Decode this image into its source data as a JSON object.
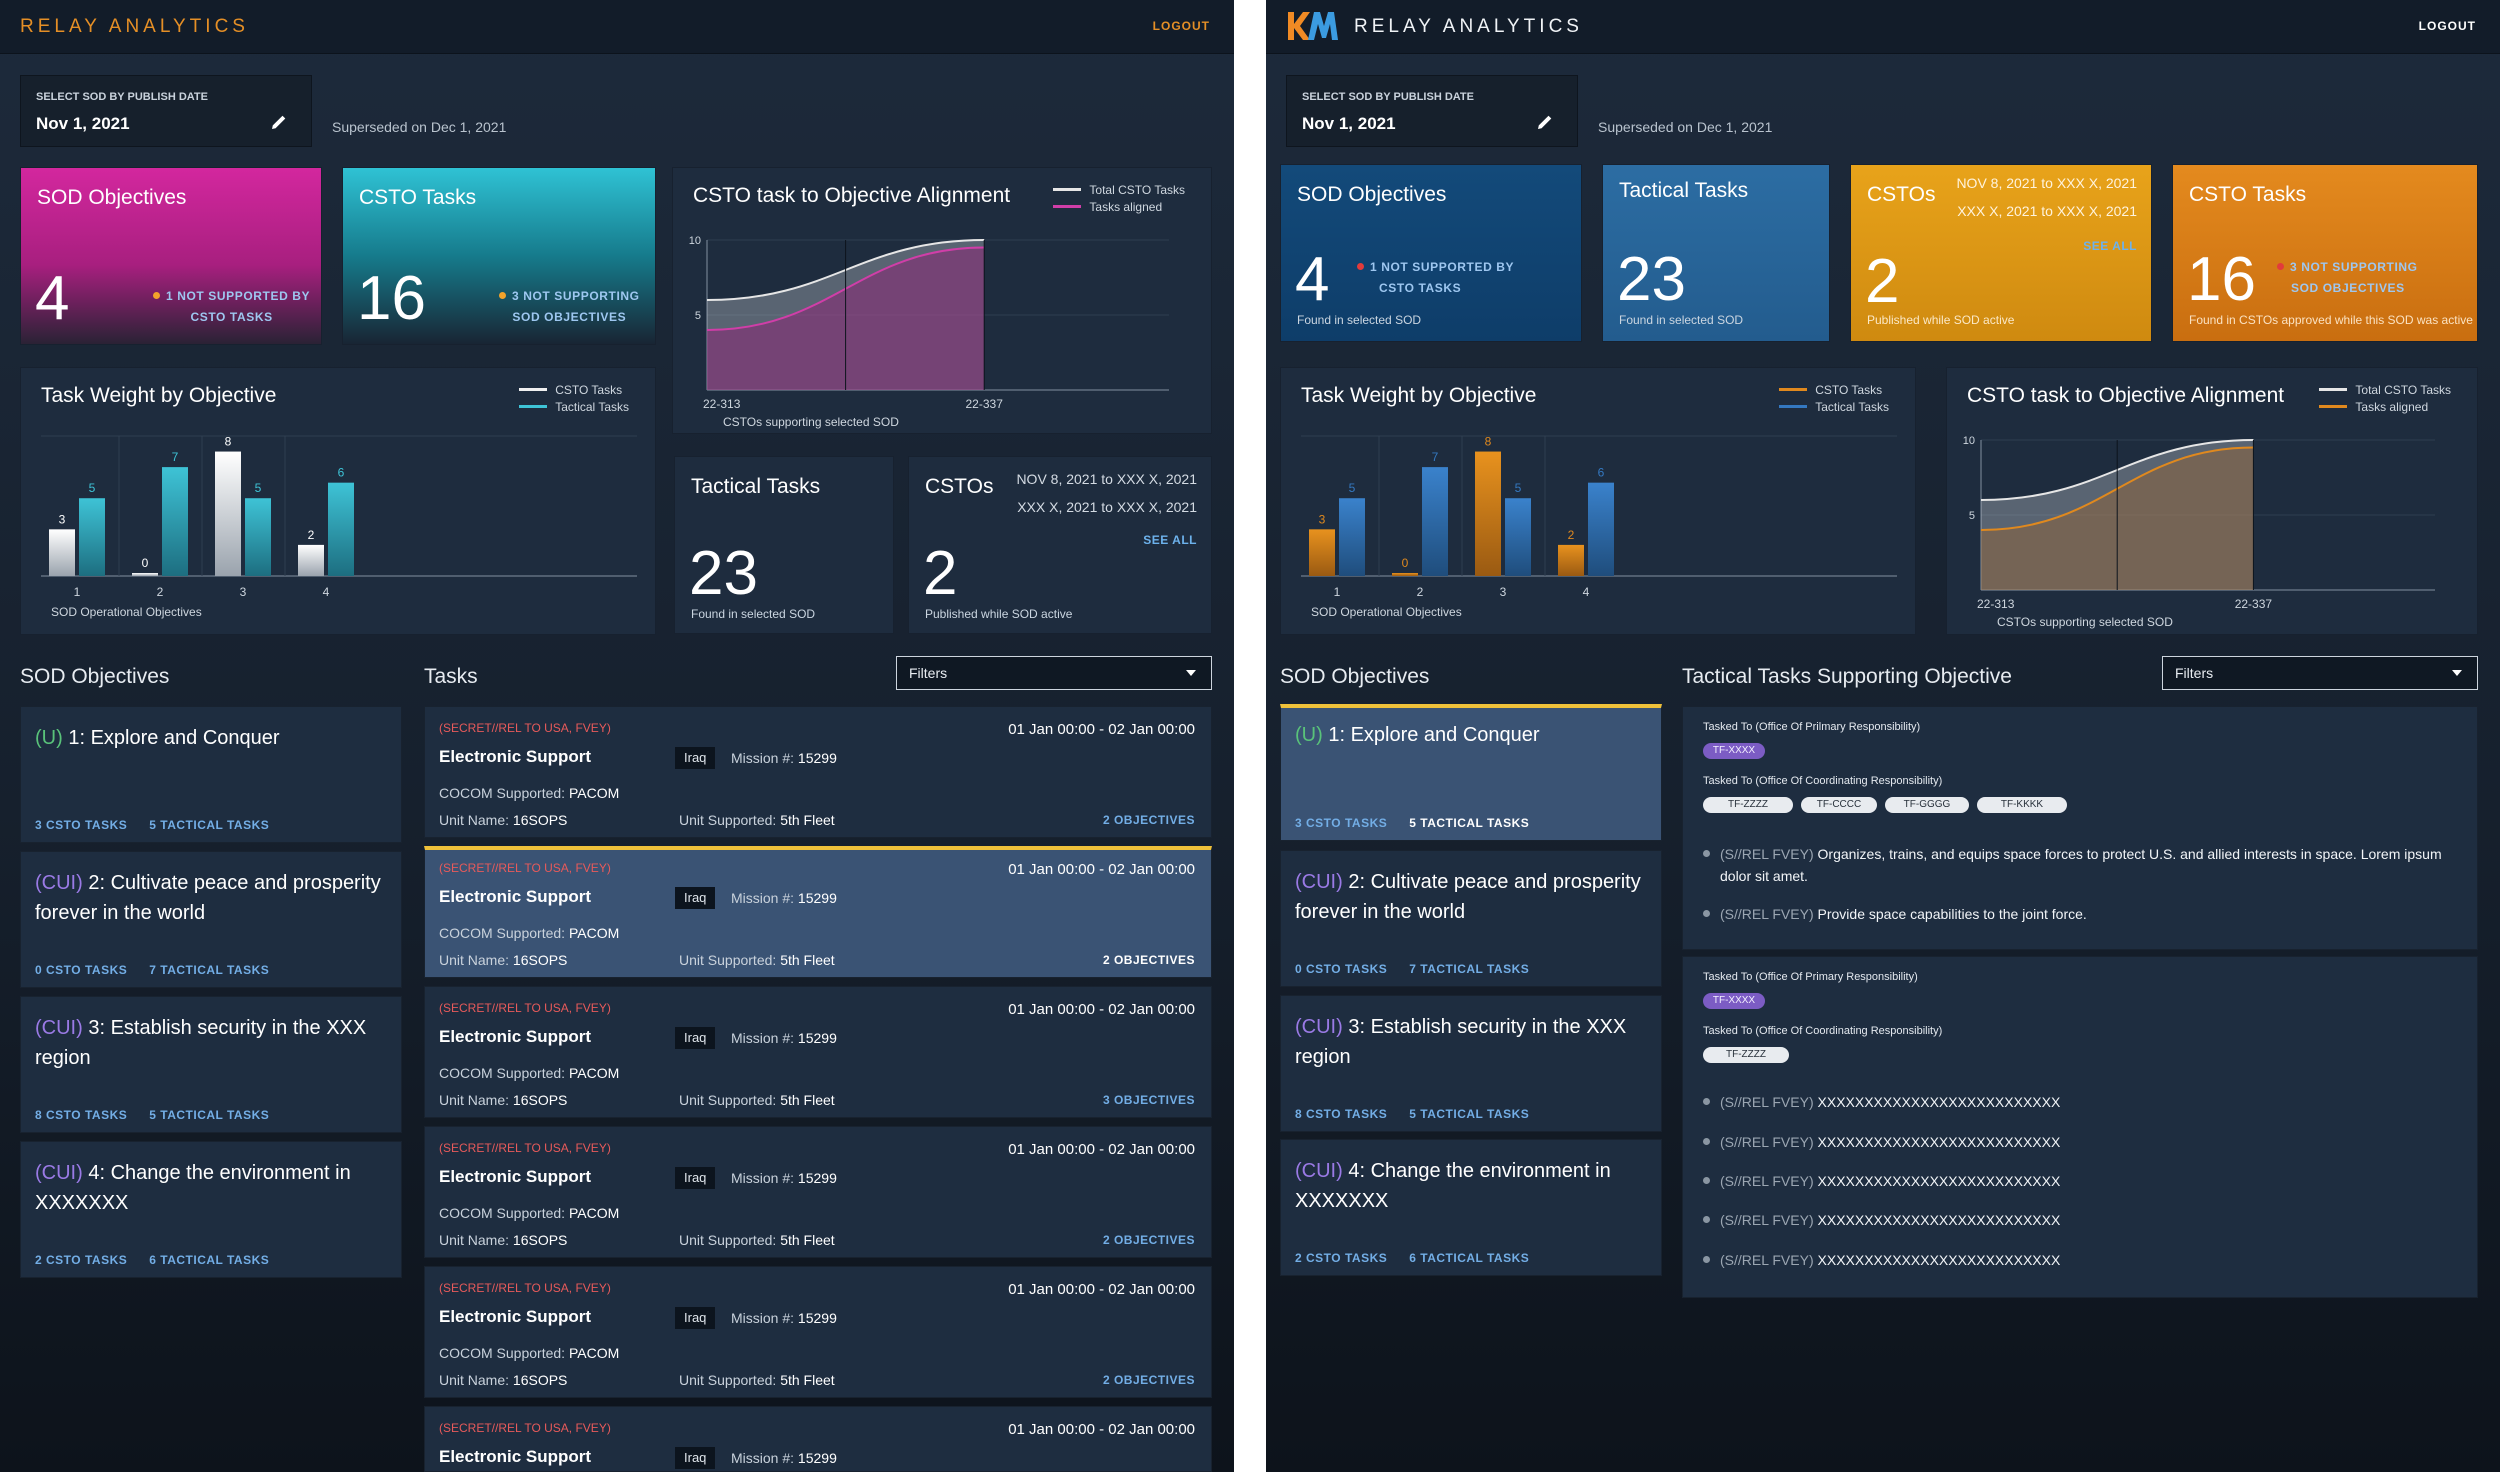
{
  "left": {
    "brand": "RELAY ANALYTICS",
    "logout": "LOGOUT",
    "select_label": "SELECT SOD BY PUBLISH DATE",
    "select_value": "Nov 1, 2021",
    "superseded": "Superseded on Dec 1, 2021",
    "kpi_sod": {
      "title": "SOD Objectives",
      "value": "4",
      "note1": "1 NOT SUPPORTED BY",
      "note2": "CSTO TASKS"
    },
    "kpi_csto": {
      "title": "CSTO Tasks",
      "value": "16",
      "note1": "3 NOT SUPPORTING",
      "note2": "SOD OBJECTIVES"
    },
    "kpi_tactical": {
      "title": "Tactical Tasks",
      "value": "23",
      "foot": "Found in selected SOD"
    },
    "kpi_cstos": {
      "title": "CSTOs",
      "value": "2",
      "date1": "NOV 8, 2021 to XXX X, 2021",
      "date2": "XXX X, 2021 to XXX X, 2021",
      "see_all": "SEE ALL",
      "foot": "Published while SOD active"
    },
    "task_weight": {
      "title": "Task Weight by Objective",
      "legend": [
        "CSTO Tasks",
        "Tactical Tasks"
      ],
      "xlabel": "SOD Operational Objectives",
      "colors": [
        "#f0f0f0",
        "#3ec3d6"
      ]
    },
    "alignment": {
      "title": "CSTO task to Objective Alignment",
      "legend": [
        "Total CSTO Tasks",
        "Tasks aligned"
      ],
      "xlabel": "CSTOs supporting selected SOD",
      "colors": [
        "#e6e6e6",
        "#d03ea8"
      ]
    },
    "objectives_title": "SOD Objectives",
    "tasks_title": "Tasks",
    "filters_label": "Filters",
    "objectives": [
      {
        "cls": "(U)",
        "text": "1: Explore and Conquer",
        "csto": "3 CSTO TASKS",
        "tactical": "5 TACTICAL TASKS"
      },
      {
        "cls": "(CUI)",
        "text": "2: Cultivate peace and prosperity forever in the world",
        "csto": "0 CSTO TASKS",
        "tactical": "7 TACTICAL TASKS"
      },
      {
        "cls": "(CUI)",
        "text": "3: Establish security in the XXX region",
        "csto": "8 CSTO TASKS",
        "tactical": "5 TACTICAL TASKS"
      },
      {
        "cls": "(CUI)",
        "text": "4: Change the environment in XXXXXXX",
        "csto": "2 CSTO TASKS",
        "tactical": "6 TACTICAL TASKS"
      }
    ],
    "tasks": [
      {
        "cls": "(SECRET//REL TO USA, FVEY)",
        "date": "01 Jan 00:00 - 02 Jan 00:00",
        "name": "Electronic Support",
        "loc": "Iraq",
        "mission_label": "Mission #:",
        "mission": "15299",
        "cocom_label": "COCOM Supported:",
        "cocom": "PACOM",
        "unit_label": "Unit Name:",
        "unit": "16SOPS",
        "usup_label": "Unit Supported:",
        "usup": "5th Fleet",
        "objs": "2 OBJECTIVES"
      },
      {
        "cls": "(SECRET//REL TO USA, FVEY)",
        "date": "01 Jan 00:00 - 02 Jan 00:00",
        "name": "Electronic Support",
        "loc": "Iraq",
        "mission_label": "Mission #:",
        "mission": "15299",
        "cocom_label": "COCOM Supported:",
        "cocom": "PACOM",
        "unit_label": "Unit Name:",
        "unit": "16SOPS",
        "usup_label": "Unit Supported:",
        "usup": "5th Fleet",
        "objs": "2 OBJECTIVES"
      },
      {
        "cls": "(SECRET//REL TO USA, FVEY)",
        "date": "01 Jan 00:00 - 02 Jan 00:00",
        "name": "Electronic Support",
        "loc": "Iraq",
        "mission_label": "Mission #:",
        "mission": "15299",
        "cocom_label": "COCOM Supported:",
        "cocom": "PACOM",
        "unit_label": "Unit Name:",
        "unit": "16SOPS",
        "usup_label": "Unit Supported:",
        "usup": "5th Fleet",
        "objs": "3 OBJECTIVES"
      },
      {
        "cls": "(SECRET//REL TO USA, FVEY)",
        "date": "01 Jan 00:00 - 02 Jan 00:00",
        "name": "Electronic Support",
        "loc": "Iraq",
        "mission_label": "Mission #:",
        "mission": "15299",
        "cocom_label": "COCOM Supported:",
        "cocom": "PACOM",
        "unit_label": "Unit Name:",
        "unit": "16SOPS",
        "usup_label": "Unit Supported:",
        "usup": "5th Fleet",
        "objs": "2 OBJECTIVES"
      },
      {
        "cls": "(SECRET//REL TO USA, FVEY)",
        "date": "01 Jan 00:00 - 02 Jan 00:00",
        "name": "Electronic Support",
        "loc": "Iraq",
        "mission_label": "Mission #:",
        "mission": "15299",
        "cocom_label": "COCOM Supported:",
        "cocom": "PACOM",
        "unit_label": "Unit Name:",
        "unit": "16SOPS",
        "usup_label": "Unit Supported:",
        "usup": "5th Fleet",
        "objs": "2 OBJECTIVES"
      },
      {
        "cls": "(SECRET//REL TO USA, FVEY)",
        "date": "01 Jan 00:00 - 02 Jan 00:00",
        "name": "Electronic Support",
        "loc": "Iraq",
        "mission_label": "Mission #:",
        "mission": "15299"
      }
    ]
  },
  "right": {
    "brand": "RELAY ANALYTICS",
    "logout": "LOGOUT",
    "select_label": "SELECT SOD BY PUBLISH DATE",
    "select_value": "Nov 1, 2021",
    "superseded": "Superseded on Dec 1, 2021",
    "kpi_sod": {
      "title": "SOD Objectives",
      "value": "4",
      "note1": "1 NOT SUPPORTED BY",
      "note2": "CSTO TASKS",
      "foot": "Found in selected SOD"
    },
    "kpi_tactical": {
      "title": "Tactical Tasks",
      "value": "23",
      "foot": "Found in selected SOD"
    },
    "kpi_cstos": {
      "title": "CSTOs",
      "value": "2",
      "date1": "NOV 8, 2021 to XXX X, 2021",
      "date2": "XXX X, 2021 to XXX X, 2021",
      "see_all": "SEE ALL",
      "foot": "Published while SOD active"
    },
    "kpi_csto": {
      "title": "CSTO Tasks",
      "value": "16",
      "note1": "3 NOT SUPPORTING",
      "note2": "SOD OBJECTIVES",
      "foot": "Found in CSTOs approved while this SOD was active"
    },
    "task_weight": {
      "title": "Task Weight by Objective",
      "legend": [
        "CSTO Tasks",
        "Tactical Tasks"
      ],
      "xlabel": "SOD Operational Objectives",
      "colors": [
        "#e0891e",
        "#3478c0"
      ]
    },
    "alignment": {
      "title": "CSTO task to Objective Alignment",
      "legend": [
        "Total CSTO Tasks",
        "Tasks aligned"
      ],
      "xlabel": "CSTOs supporting selected SOD",
      "colors": [
        "#e6e6e6",
        "#e0891e"
      ]
    },
    "objectives_title": "SOD Objectives",
    "tactical_title": "Tactical Tasks Supporting Objective",
    "filters_label": "Filters",
    "objectives": [
      {
        "cls": "(U)",
        "text": "1: Explore and Conquer",
        "csto": "3 CSTO TASKS",
        "tactical": "5 TACTICAL TASKS"
      },
      {
        "cls": "(CUI)",
        "text": "2: Cultivate peace and prosperity forever in the world",
        "csto": "0 CSTO TASKS",
        "tactical": "7 TACTICAL TASKS"
      },
      {
        "cls": "(CUI)",
        "text": "3: Establish security in the XXX region",
        "csto": "8 CSTO TASKS",
        "tactical": "5 TACTICAL TASKS"
      },
      {
        "cls": "(CUI)",
        "text": "4: Change the environment in XXXXXXX",
        "csto": "2 CSTO TASKS",
        "tactical": "6 TACTICAL TASKS"
      }
    ],
    "tactical_tasks": [
      {
        "primary_label": "Tasked To (Office Of Prilmary Responsibility)",
        "primary": [
          "TF-XXXX"
        ],
        "coord_label": "Tasked To (Office Of Coordinating Responsibility)",
        "coord": [
          "TF-ZZZZ",
          "TF-CCCC",
          "TF-GGGG",
          "TF-KKKK"
        ],
        "bullets": [
          {
            "cls": "(S//REL FVEY)",
            "text": "Organizes, trains, and equips space forces to protect U.S. and allied interests in space. Lorem ipsum dolor sit amet."
          },
          {
            "cls": "(S//REL FVEY)",
            "text": "Provide space capabilities to the joint force."
          }
        ]
      },
      {
        "primary_label": "Tasked To (Office Of Primary Responsibility)",
        "primary": [
          "TF-XXXX"
        ],
        "coord_label": "Tasked To (Office Of Coordinating Responsibility)",
        "coord": [
          "TF-ZZZZ"
        ],
        "bullets": [
          {
            "cls": "(S//REL FVEY)",
            "text": "XXXXXXXXXXXXXXXXXXXXXXXXXX"
          },
          {
            "cls": "(S//REL FVEY)",
            "text": "XXXXXXXXXXXXXXXXXXXXXXXXXX"
          },
          {
            "cls": "(S//REL FVEY)",
            "text": "XXXXXXXXXXXXXXXXXXXXXXXXXX"
          },
          {
            "cls": "(S//REL FVEY)",
            "text": "XXXXXXXXXXXXXXXXXXXXXXXXXX"
          },
          {
            "cls": "(S//REL FVEY)",
            "text": "XXXXXXXXXXXXXXXXXXXXXXXXXX"
          }
        ]
      }
    ]
  },
  "chart_data": [
    {
      "type": "bar",
      "title": "Task Weight by Objective",
      "xlabel": "SOD Operational Objectives",
      "categories": [
        "1",
        "2",
        "3",
        "4"
      ],
      "series": [
        {
          "name": "CSTO Tasks",
          "values": [
            3,
            0,
            8,
            2
          ]
        },
        {
          "name": "Tactical Tasks",
          "values": [
            5,
            7,
            5,
            6
          ]
        }
      ],
      "ylim": [
        0,
        9
      ],
      "legend": "top-right"
    },
    {
      "type": "area",
      "title": "CSTO task to Objective Alignment",
      "xlabel": "CSTOs supporting selected SOD",
      "x": [
        "22-313",
        "22-337"
      ],
      "series": [
        {
          "name": "Total CSTO Tasks",
          "values": [
            6,
            10
          ]
        },
        {
          "name": "Tasks aligned",
          "values": [
            4,
            9.5
          ]
        }
      ],
      "yticks": [
        5,
        10
      ],
      "ylim": [
        0,
        10
      ],
      "legend": "top-right"
    }
  ]
}
